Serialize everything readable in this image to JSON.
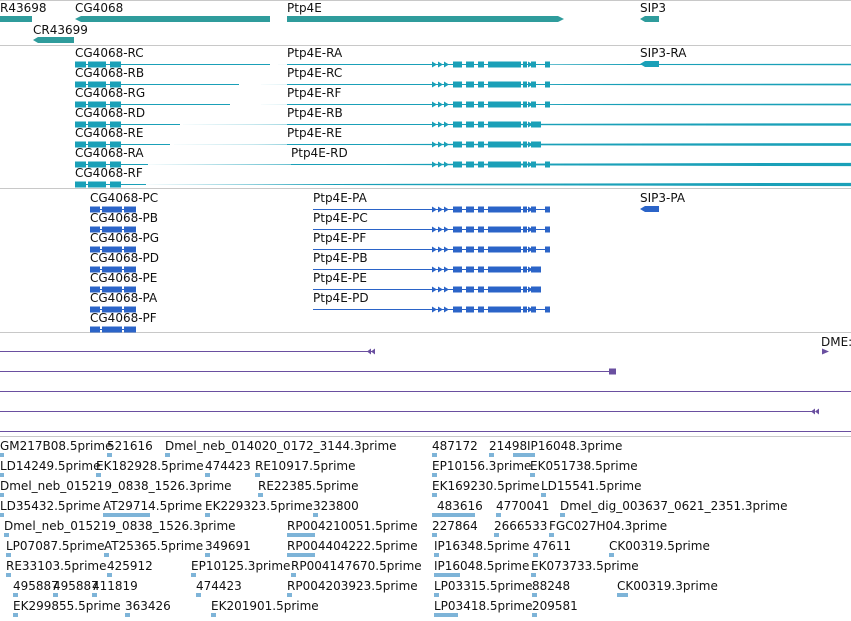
{
  "colors": {
    "gene": "#2f9c9c",
    "mrna": "#1aa0b8",
    "protein": "#2b64c8",
    "long": "#6a4fa0",
    "est": "#7eb4d8",
    "separator": "#c8c8c8",
    "text": "#111111"
  },
  "tracks": {
    "genes": {
      "items": [
        {
          "name": "R43698"
        },
        {
          "name": "CG4068"
        },
        {
          "name": "CR43699"
        },
        {
          "name": "Ptp4E"
        },
        {
          "name": "SIP3"
        }
      ]
    },
    "transcripts": {
      "cg_labels": [
        "CG4068-RC",
        "CG4068-RB",
        "CG4068-RG",
        "CG4068-RD",
        "CG4068-RE",
        "CG4068-RA",
        "CG4068-RF"
      ],
      "ptp_labels": [
        "Ptp4E-RA",
        "Ptp4E-RC",
        "Ptp4E-RF",
        "Ptp4E-RB",
        "Ptp4E-RE",
        "Ptp4E-RD"
      ],
      "sip_label": "SIP3-RA"
    },
    "proteins": {
      "cg_labels": [
        "CG4068-PC",
        "CG4068-PB",
        "CG4068-PG",
        "CG4068-PD",
        "CG4068-PE",
        "CG4068-PA",
        "CG4068-PF"
      ],
      "ptp_labels": [
        "Ptp4E-PA",
        "Ptp4E-PC",
        "Ptp4E-PF",
        "Ptp4E-PB",
        "Ptp4E-PE",
        "Ptp4E-PD"
      ],
      "sip_label": "SIP3-PA"
    },
    "long_reads": {
      "label": "DME:"
    },
    "ests": {
      "rows": [
        [
          "GM217B08.5prime",
          "521616",
          "Dmel_neb_014020_0172_3144.3prime",
          "487172",
          "21498",
          "IP16048.3prime"
        ],
        [
          "LD14249.5prime",
          "EK182928.5prime",
          "474423",
          "RE10917.5prime",
          "EP10156.3prime",
          "EK051738.5prime"
        ],
        [
          "Dmel_neb_015219_0838_1526.3prime",
          "RE22385.5prime",
          "EK169230.5prime",
          "LD15541.5prime"
        ],
        [
          "LD35432.5prime",
          "AT29714.5prime",
          "EK229323.5prime",
          "323800",
          "483616",
          "4770041",
          "Dmel_dig_003637_0621_2351.3prime"
        ],
        [
          "Dmel_neb_015219_0838_1526.3prime",
          "RP004210051.5prime",
          "227864",
          "2666533",
          "FGC027H04.3prime"
        ],
        [
          "LP07087.5prime",
          "AT25365.5prime",
          "349691",
          "RP004404222.5prime",
          "IP16348.5prime",
          "47611",
          "CK00319.5prime"
        ],
        [
          "RE33103.5prime",
          "425912",
          "EP10125.3prime",
          "RP004147670.5prime",
          "IP16048.5prime",
          "EK073733.5prime"
        ],
        [
          "495887",
          "495887",
          "411819",
          "474423",
          "RP004203923.5prime",
          "LP03315.5prime",
          "88248",
          "CK00319.3prime"
        ],
        [
          "EK299855.5prime",
          "363426",
          "EK201901.5prime",
          "LP03418.5prime",
          "209581"
        ]
      ]
    }
  }
}
